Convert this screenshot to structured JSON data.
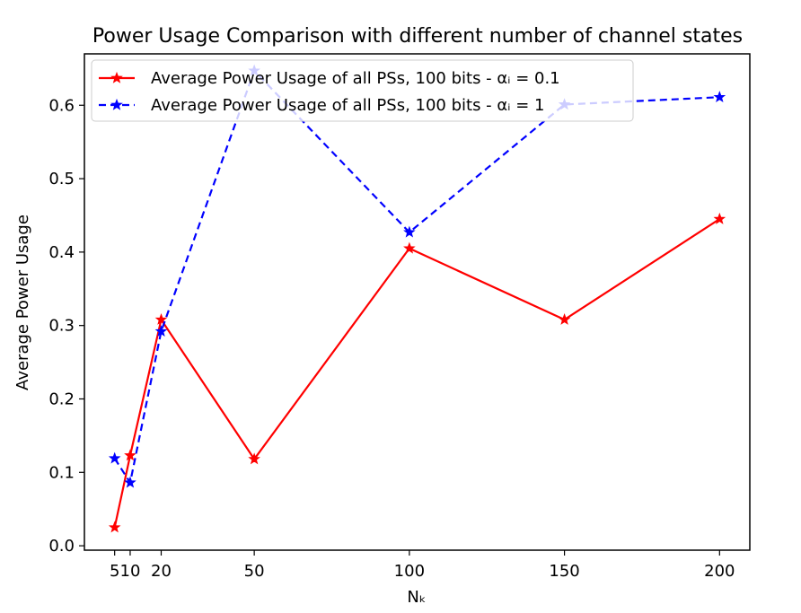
{
  "chart_data": {
    "type": "line",
    "title": "Power Usage Comparison with different number of channel states",
    "xlabel": "Nₖ",
    "ylabel": "Average Power Usage",
    "x": [
      5,
      10,
      20,
      50,
      100,
      150,
      200
    ],
    "xticks": [
      5,
      10,
      20,
      50,
      100,
      150,
      200
    ],
    "xtick_labels": [
      "5",
      "10",
      "20",
      "50",
      "100",
      "150",
      "200"
    ],
    "yticks": [
      0.0,
      0.1,
      0.2,
      0.3,
      0.4,
      0.5,
      0.6
    ],
    "ytick_labels": [
      "0.0",
      "0.1",
      "0.2",
      "0.3",
      "0.4",
      "0.5",
      "0.6"
    ],
    "xlim": [
      -4.75,
      209.75
    ],
    "ylim": [
      -0.006,
      0.67
    ],
    "grid": false,
    "legend_position": "top-left",
    "series": [
      {
        "name": "Average Power Usage of all PSs, 100 bits - αᵢ = 0.1",
        "color": "#ff0000",
        "linestyle": "solid",
        "marker": "star",
        "values": [
          0.025,
          0.123,
          0.308,
          0.118,
          0.405,
          0.308,
          0.445
        ]
      },
      {
        "name": "Average Power Usage of all PSs, 100 bits - αᵢ = 1",
        "color": "#0000ff",
        "linestyle": "dashed",
        "marker": "star",
        "values": [
          0.119,
          0.086,
          0.292,
          0.647,
          0.427,
          0.601,
          0.611
        ]
      }
    ]
  }
}
